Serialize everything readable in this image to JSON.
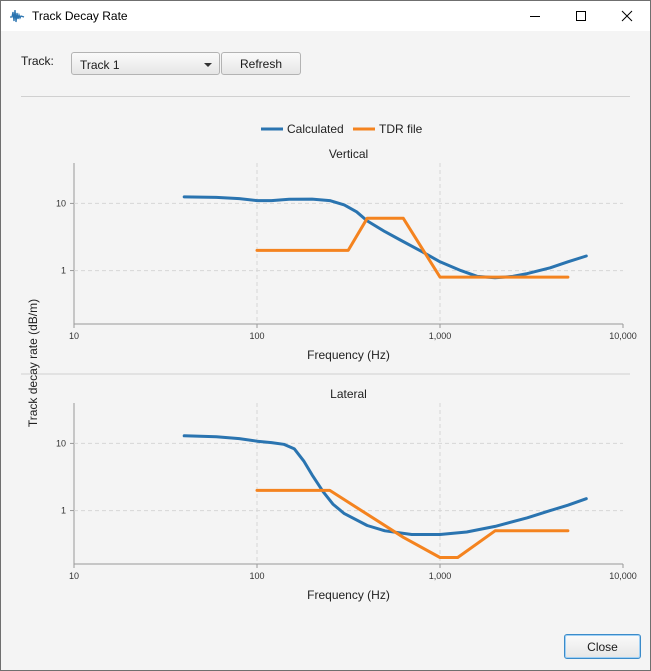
{
  "window": {
    "title": "Track Decay Rate",
    "icon": "waveform-app-icon"
  },
  "toolbar": {
    "track_label": "Track:",
    "track_value": "Track 1",
    "refresh_label": "Refresh"
  },
  "footer": {
    "close_label": "Close"
  },
  "colors": {
    "calculated": "#2a74b0",
    "tdr": "#f4831f"
  },
  "chart_data": [
    {
      "type": "line",
      "title": "Vertical",
      "xlabel": "Frequency (Hz)",
      "ylabel": "Track decay rate (dB/m)",
      "x_scale": "log",
      "y_scale": "log",
      "xlim": [
        10,
        10000
      ],
      "ylim": [
        0.16,
        40
      ],
      "x_ticks": [
        "10",
        "100",
        "1,000",
        "10,000"
      ],
      "y_ticks": [
        "1",
        "10"
      ],
      "grid": true,
      "legend": "top-center",
      "series": [
        {
          "name": "Calculated",
          "color": "#2a74b0",
          "points": [
            [
              40,
              12.5
            ],
            [
              60,
              12.3
            ],
            [
              80,
              11.8
            ],
            [
              100,
              11
            ],
            [
              120,
              11
            ],
            [
              150,
              11.5
            ],
            [
              200,
              11.6
            ],
            [
              250,
              11
            ],
            [
              300,
              9.5
            ],
            [
              350,
              7.5
            ],
            [
              400,
              5.5
            ],
            [
              500,
              3.8
            ],
            [
              600,
              2.9
            ],
            [
              800,
              1.9
            ],
            [
              1000,
              1.35
            ],
            [
              1300,
              1.0
            ],
            [
              1600,
              0.82
            ],
            [
              2000,
              0.78
            ],
            [
              2500,
              0.82
            ],
            [
              3000,
              0.9
            ],
            [
              4000,
              1.1
            ],
            [
              5000,
              1.35
            ],
            [
              6300,
              1.65
            ]
          ]
        },
        {
          "name": "TDR file",
          "color": "#f4831f",
          "points": [
            [
              100,
              2.0
            ],
            [
              315,
              2.0
            ],
            [
              400,
              6.0
            ],
            [
              630,
              6.0
            ],
            [
              1000,
              0.8
            ],
            [
              5000,
              0.8
            ]
          ]
        }
      ]
    },
    {
      "type": "line",
      "title": "Lateral",
      "xlabel": "Frequency (Hz)",
      "ylabel": "Track decay rate (dB/m)",
      "x_scale": "log",
      "y_scale": "log",
      "xlim": [
        10,
        10000
      ],
      "ylim": [
        0.16,
        40
      ],
      "x_ticks": [
        "10",
        "100",
        "1,000",
        "10,000"
      ],
      "y_ticks": [
        "1",
        "10"
      ],
      "grid": true,
      "series": [
        {
          "name": "Calculated",
          "color": "#2a74b0",
          "points": [
            [
              40,
              13
            ],
            [
              60,
              12.6
            ],
            [
              80,
              11.8
            ],
            [
              100,
              10.8
            ],
            [
              120,
              10.3
            ],
            [
              140,
              9.7
            ],
            [
              160,
              8.3
            ],
            [
              180,
              5.5
            ],
            [
              200,
              3.4
            ],
            [
              230,
              1.9
            ],
            [
              260,
              1.25
            ],
            [
              300,
              0.9
            ],
            [
              400,
              0.6
            ],
            [
              500,
              0.5
            ],
            [
              700,
              0.44
            ],
            [
              1000,
              0.44
            ],
            [
              1400,
              0.48
            ],
            [
              2000,
              0.58
            ],
            [
              3000,
              0.78
            ],
            [
              4000,
              1.0
            ],
            [
              5000,
              1.2
            ],
            [
              6300,
              1.5
            ]
          ]
        },
        {
          "name": "TDR file",
          "color": "#f4831f",
          "points": [
            [
              100,
              2.0
            ],
            [
              250,
              2.0
            ],
            [
              630,
              0.4
            ],
            [
              1000,
              0.2
            ],
            [
              1250,
              0.2
            ],
            [
              2000,
              0.5
            ],
            [
              5000,
              0.5
            ]
          ]
        }
      ]
    }
  ]
}
